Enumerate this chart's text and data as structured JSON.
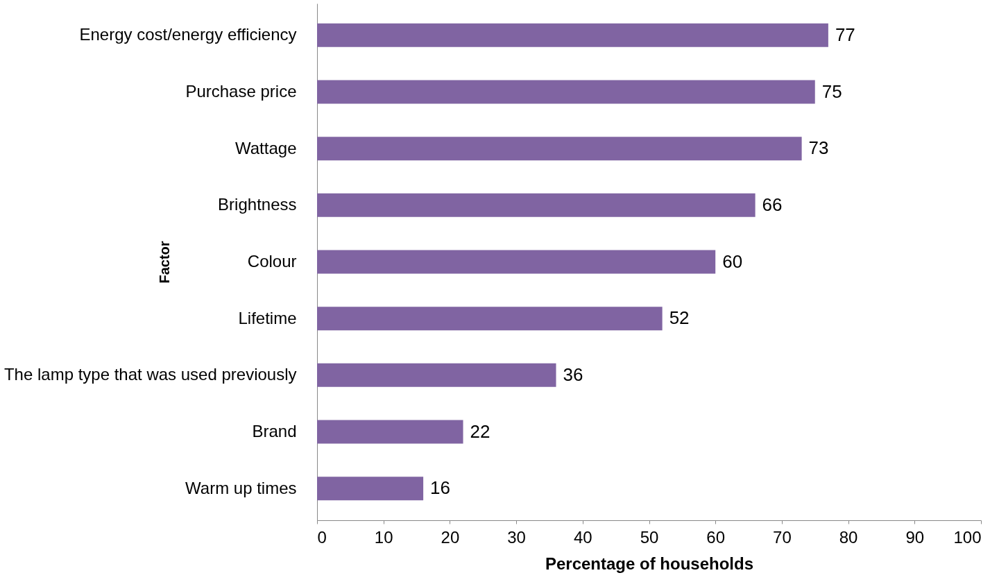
{
  "chart_data": {
    "type": "bar",
    "orientation": "horizontal",
    "xlabel": "Percentage of households",
    "ylabel": "Factor",
    "categories": [
      "Energy cost/energy efficiency",
      "Purchase price",
      "Wattage",
      "Brightness",
      "Colour",
      "Lifetime",
      "The lamp type that was used previously",
      "Brand",
      "Warm up times"
    ],
    "values": [
      77,
      75,
      73,
      66,
      60,
      52,
      36,
      22,
      16
    ],
    "color": "#8064a2",
    "xlim": [
      0,
      100
    ],
    "xticks": [
      0,
      10,
      20,
      30,
      40,
      50,
      60,
      70,
      80,
      90,
      100
    ],
    "data_labels": true,
    "grid": false
  }
}
